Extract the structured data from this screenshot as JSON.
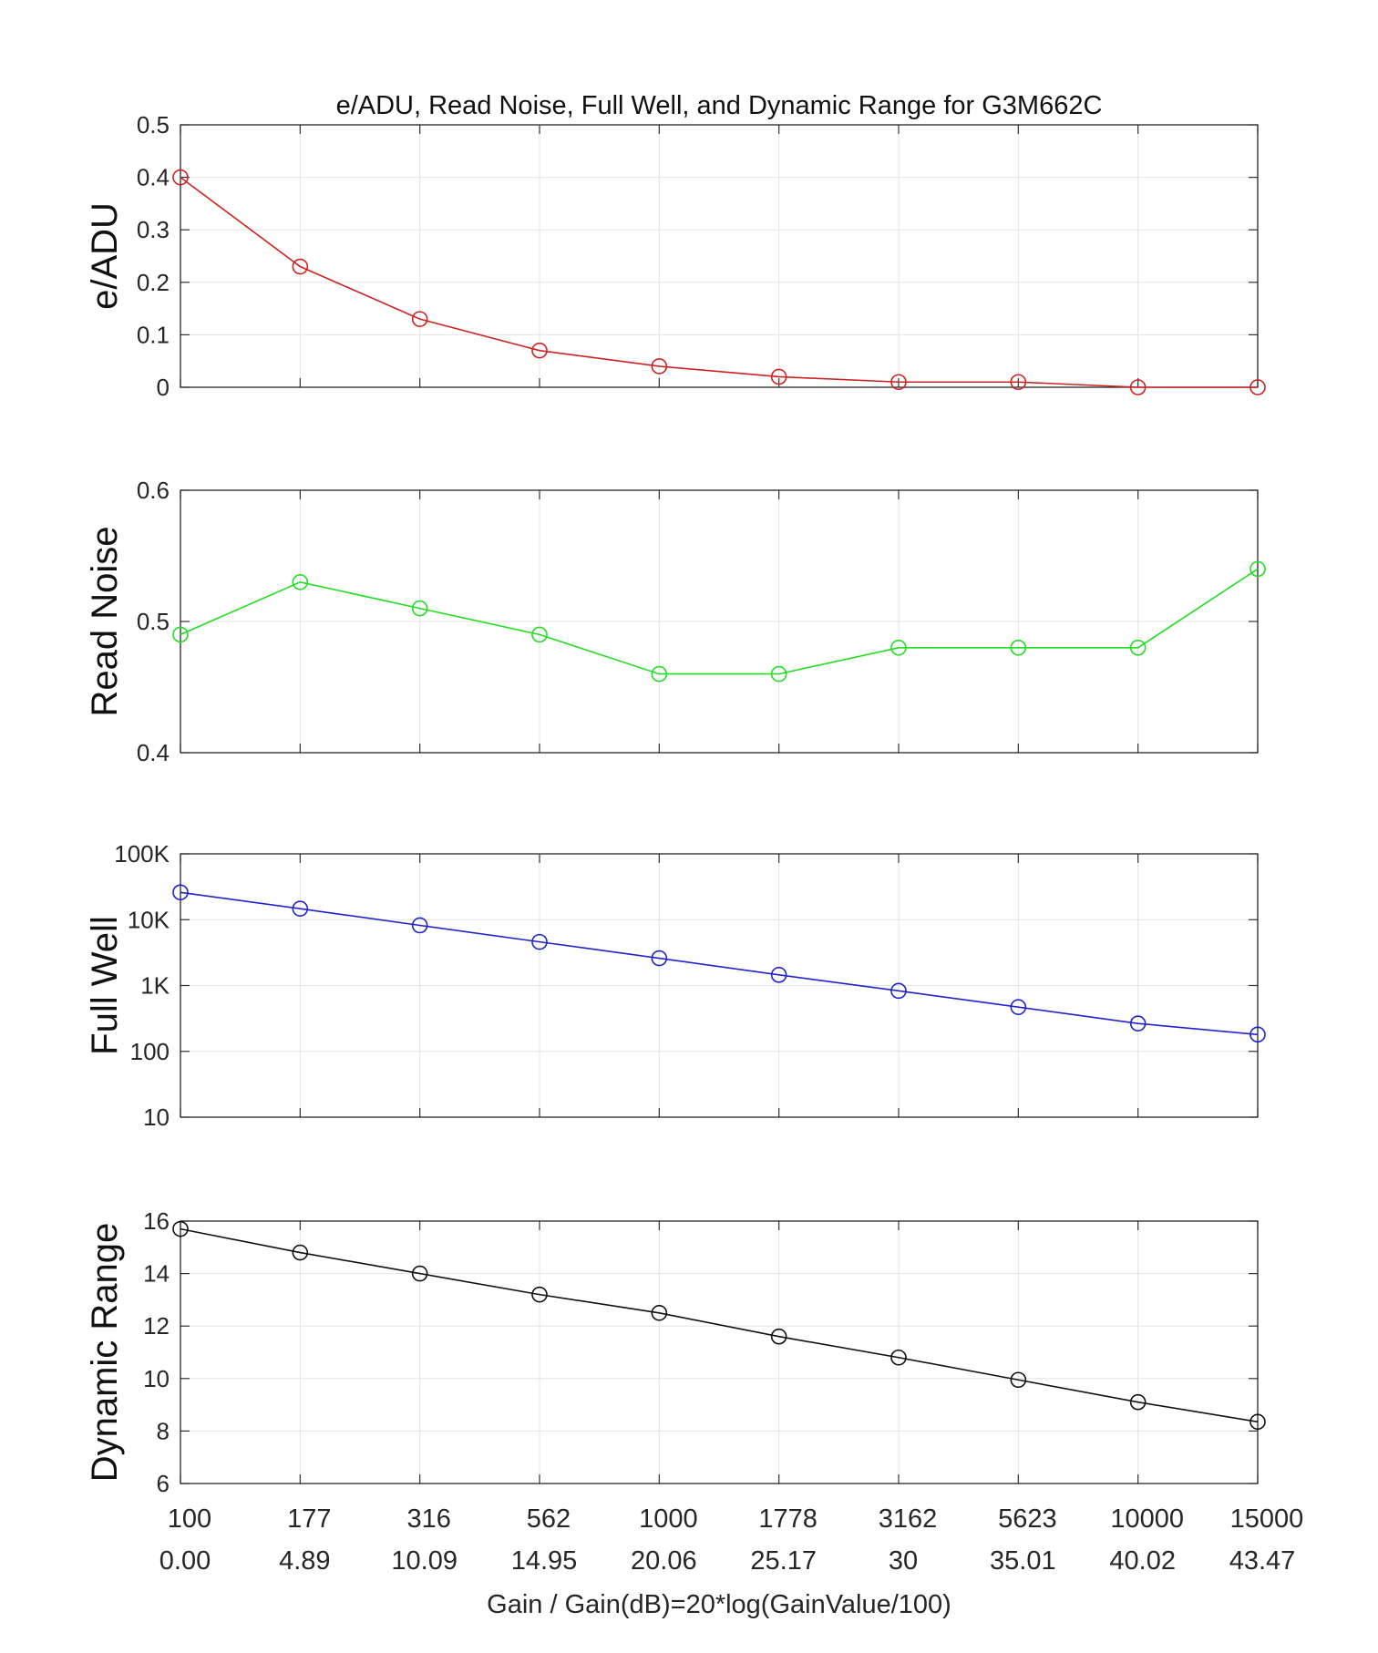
{
  "figure_title": "e/ADU, Read Noise, Full Well, and Dynamic Range for G3M662C",
  "shared_x": {
    "gain_labels": [
      "100",
      "177",
      "316",
      "562",
      "1000",
      "1778",
      "3162",
      "5623",
      "10000",
      "15000"
    ],
    "db_labels": [
      "0.00",
      "4.89",
      "10.09",
      "14.95",
      "20.06",
      "25.17",
      "30",
      "35.01",
      "40.02",
      "43.47"
    ],
    "xlabel": "Gain / Gain(dB)=20*log(GainValue/100)"
  },
  "chart_data": [
    {
      "type": "line",
      "title": "e/ADU, Read Noise, Full Well, and Dynamic Range for G3M662C",
      "ylabel": "e/ADU",
      "ylim": [
        0,
        0.5
      ],
      "yscale": "linear",
      "yticks": [
        0,
        0.1,
        0.2,
        0.3,
        0.4,
        0.5
      ],
      "ytick_labels": [
        "0",
        "0.1",
        "0.2",
        "0.3",
        "0.4",
        "0.5"
      ],
      "grid": true,
      "color": "#cc2222",
      "marker": "circle",
      "x": [
        100,
        177,
        316,
        562,
        1000,
        1778,
        3162,
        5623,
        10000,
        15000
      ],
      "values": [
        0.4,
        0.23,
        0.13,
        0.07,
        0.04,
        0.02,
        0.01,
        0.01,
        0.0,
        0.0
      ]
    },
    {
      "type": "line",
      "ylabel": "Read Noise",
      "ylim": [
        0.4,
        0.6
      ],
      "yscale": "linear",
      "yticks": [
        0.4,
        0.5,
        0.6
      ],
      "ytick_labels": [
        "0.4",
        "0.5",
        "0.6"
      ],
      "grid": true,
      "color": "#22dd22",
      "marker": "circle",
      "x": [
        100,
        177,
        316,
        562,
        1000,
        1778,
        3162,
        5623,
        10000,
        15000
      ],
      "values": [
        0.49,
        0.53,
        0.51,
        0.49,
        0.46,
        0.46,
        0.48,
        0.48,
        0.48,
        0.54
      ]
    },
    {
      "type": "line",
      "ylabel": "Full Well",
      "ylim": [
        10,
        100000
      ],
      "yscale": "log",
      "yticks": [
        10,
        100,
        1000,
        10000,
        100000
      ],
      "ytick_labels": [
        "10",
        "100",
        "1K",
        "10K",
        "100K"
      ],
      "grid": true,
      "color": "#2222cc",
      "marker": "circle",
      "x": [
        100,
        177,
        316,
        562,
        1000,
        1778,
        3162,
        5623,
        10000,
        15000
      ],
      "values": [
        26000,
        14700,
        8200,
        4600,
        2600,
        1450,
        830,
        470,
        265,
        180
      ]
    },
    {
      "type": "line",
      "ylabel": "Dynamic Range",
      "ylim": [
        6,
        16
      ],
      "yscale": "linear",
      "yticks": [
        6,
        8,
        10,
        12,
        14,
        16
      ],
      "ytick_labels": [
        "6",
        "8",
        "10",
        "12",
        "14",
        "16"
      ],
      "grid": true,
      "color": "#111111",
      "marker": "circle",
      "x": [
        100,
        177,
        316,
        562,
        1000,
        1778,
        3162,
        5623,
        10000,
        15000
      ],
      "values": [
        15.7,
        14.8,
        14.0,
        13.2,
        12.5,
        11.6,
        10.8,
        9.95,
        9.1,
        8.35
      ]
    }
  ]
}
